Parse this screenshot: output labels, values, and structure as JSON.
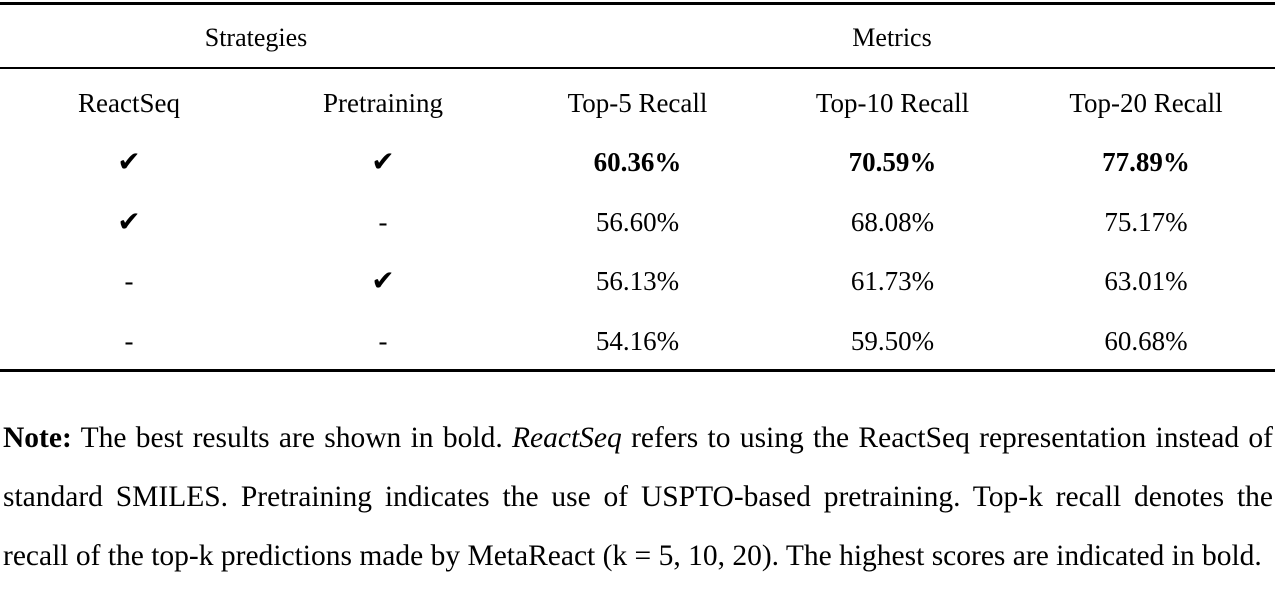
{
  "table": {
    "group_headers": {
      "strategies": "Strategies",
      "metrics": "Metrics"
    },
    "columns": [
      "ReactSeq",
      "Pretraining",
      "Top-5 Recall",
      "Top-10 Recall",
      "Top-20 Recall"
    ],
    "rows": [
      [
        "✔",
        "✔",
        "60.36%",
        "70.59%",
        "77.89%"
      ],
      [
        "✔",
        "-",
        "56.60%",
        "68.08%",
        "75.17%"
      ],
      [
        "-",
        "✔",
        "56.13%",
        "61.73%",
        "63.01%"
      ],
      [
        "-",
        "-",
        "54.16%",
        "59.50%",
        "60.68%"
      ]
    ]
  },
  "note": {
    "label": "Note:",
    "part1": " The best results are shown in bold. ",
    "italic": "ReactSeq",
    "part2": " refers to using the ReactSeq representation instead of standard SMILES. Pretraining indicates the use of USPTO-based pretraining. Top-k recall denotes the recall of the top-k predictions made by MetaReact (k = 5, 10, 20). The highest scores are indicated in bold."
  }
}
